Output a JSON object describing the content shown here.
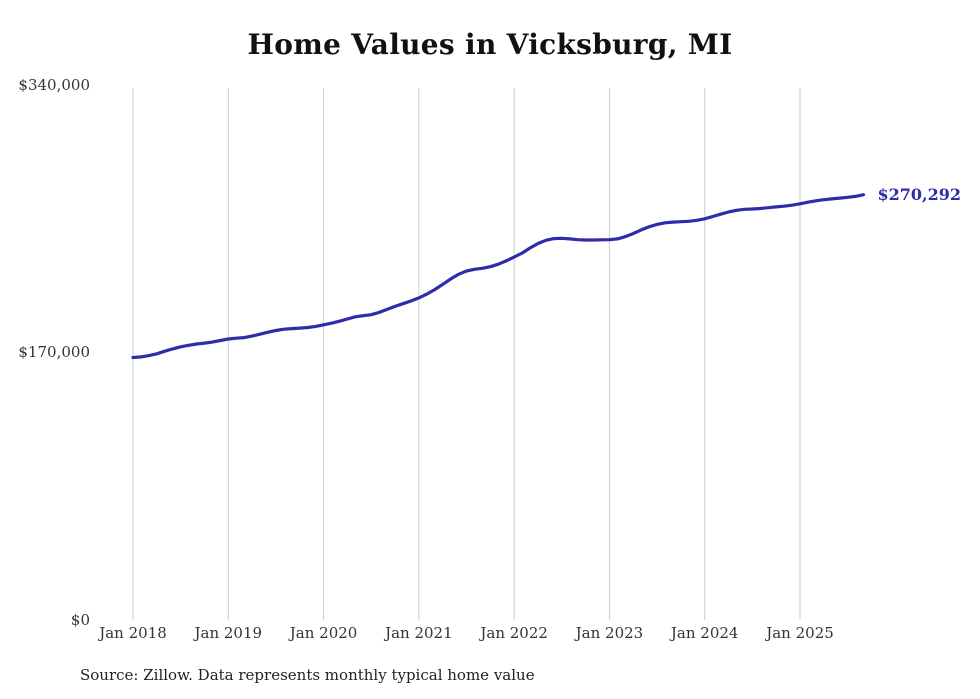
{
  "page": {
    "background": "#ffffff"
  },
  "chart_data": {
    "type": "line",
    "title": "Home Values in Vicksburg, MI",
    "xlabel": "",
    "ylabel": "",
    "ylim": [
      0,
      340000
    ],
    "y_ticks": [
      0,
      170000,
      340000
    ],
    "y_tick_labels": [
      "$0",
      "$170,000",
      "$340,000"
    ],
    "x_tick_labels": [
      "Jan 2018",
      "Jan 2019",
      "Jan 2020",
      "Jan 2021",
      "Jan 2022",
      "Jan 2023",
      "Jan 2024",
      "Jan 2025"
    ],
    "grid": "vertical-only",
    "grid_color": "#cccccc",
    "legend": "none",
    "end_label": "$270,292",
    "source_note": "Source: Zillow. Data represents monthly typical home value",
    "series": [
      {
        "name": "Monthly typical home value",
        "color": "#2f2caa",
        "x": [
          "2018-01",
          "2018-02",
          "2018-03",
          "2018-04",
          "2018-05",
          "2018-06",
          "2018-07",
          "2018-08",
          "2018-09",
          "2018-10",
          "2018-11",
          "2018-12",
          "2019-01",
          "2019-02",
          "2019-03",
          "2019-04",
          "2019-05",
          "2019-06",
          "2019-07",
          "2019-08",
          "2019-09",
          "2019-10",
          "2019-11",
          "2019-12",
          "2020-01",
          "2020-02",
          "2020-03",
          "2020-04",
          "2020-05",
          "2020-06",
          "2020-07",
          "2020-08",
          "2020-09",
          "2020-10",
          "2020-11",
          "2020-12",
          "2021-01",
          "2021-02",
          "2021-03",
          "2021-04",
          "2021-05",
          "2021-06",
          "2021-07",
          "2021-08",
          "2021-09",
          "2021-10",
          "2021-11",
          "2021-12",
          "2022-01",
          "2022-02",
          "2022-03",
          "2022-04",
          "2022-05",
          "2022-06",
          "2022-07",
          "2022-08",
          "2022-09",
          "2022-10",
          "2022-11",
          "2022-12",
          "2023-01",
          "2023-02",
          "2023-03",
          "2023-04",
          "2023-05",
          "2023-06",
          "2023-07",
          "2023-08",
          "2023-09",
          "2023-10",
          "2023-11",
          "2023-12",
          "2024-01",
          "2024-02",
          "2024-03",
          "2024-04",
          "2024-05",
          "2024-06",
          "2024-07",
          "2024-08",
          "2024-09",
          "2024-10",
          "2024-11",
          "2024-12",
          "2025-01",
          "2025-02",
          "2025-03",
          "2025-04",
          "2025-05",
          "2025-06",
          "2025-07",
          "2025-08",
          "2025-09"
        ],
        "values": [
          166800,
          167200,
          168000,
          169200,
          170800,
          172300,
          173600,
          174600,
          175400,
          176000,
          176600,
          177600,
          178600,
          179100,
          179500,
          180400,
          181600,
          182900,
          184000,
          184800,
          185200,
          185500,
          185900,
          186600,
          187600,
          188600,
          189900,
          191300,
          192700,
          193400,
          194000,
          195500,
          197400,
          199300,
          201000,
          202700,
          204700,
          207100,
          210000,
          213300,
          216700,
          219700,
          221800,
          222900,
          223500,
          224500,
          226100,
          228200,
          230600,
          233200,
          236400,
          239300,
          241300,
          242400,
          242600,
          242200,
          241700,
          241500,
          241500,
          241600,
          241700,
          242200,
          243600,
          245600,
          247900,
          249900,
          251400,
          252400,
          252900,
          253100,
          253400,
          254000,
          255000,
          256400,
          257900,
          259300,
          260400,
          261000,
          261200,
          261500,
          262000,
          262500,
          263000,
          263600,
          264500,
          265500,
          266400,
          267100,
          267600,
          268100,
          268600,
          269200,
          270292
        ]
      }
    ]
  }
}
